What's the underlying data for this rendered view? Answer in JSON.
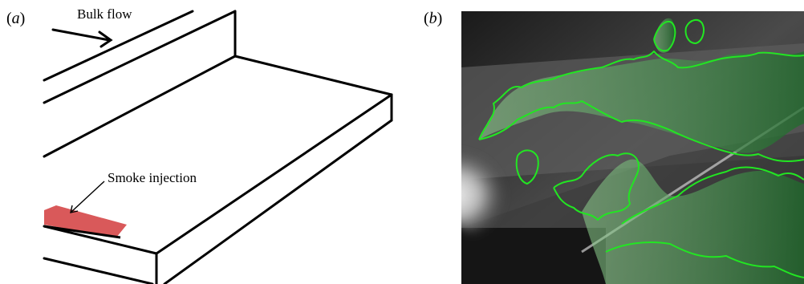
{
  "figure": {
    "panel_a": {
      "label_open": "(",
      "label_letter": "a",
      "label_close": ")",
      "annotations": {
        "bulk_flow": "Bulk flow",
        "smoke_injection": "Smoke injection"
      },
      "colors": {
        "injection_patch": "#d9595a",
        "outline": "#000000"
      }
    },
    "panel_b": {
      "label_open": "(",
      "label_letter": "b",
      "label_close": ")",
      "colors": {
        "contour": "#22e622",
        "overlay": "#2f8f3a"
      }
    }
  }
}
